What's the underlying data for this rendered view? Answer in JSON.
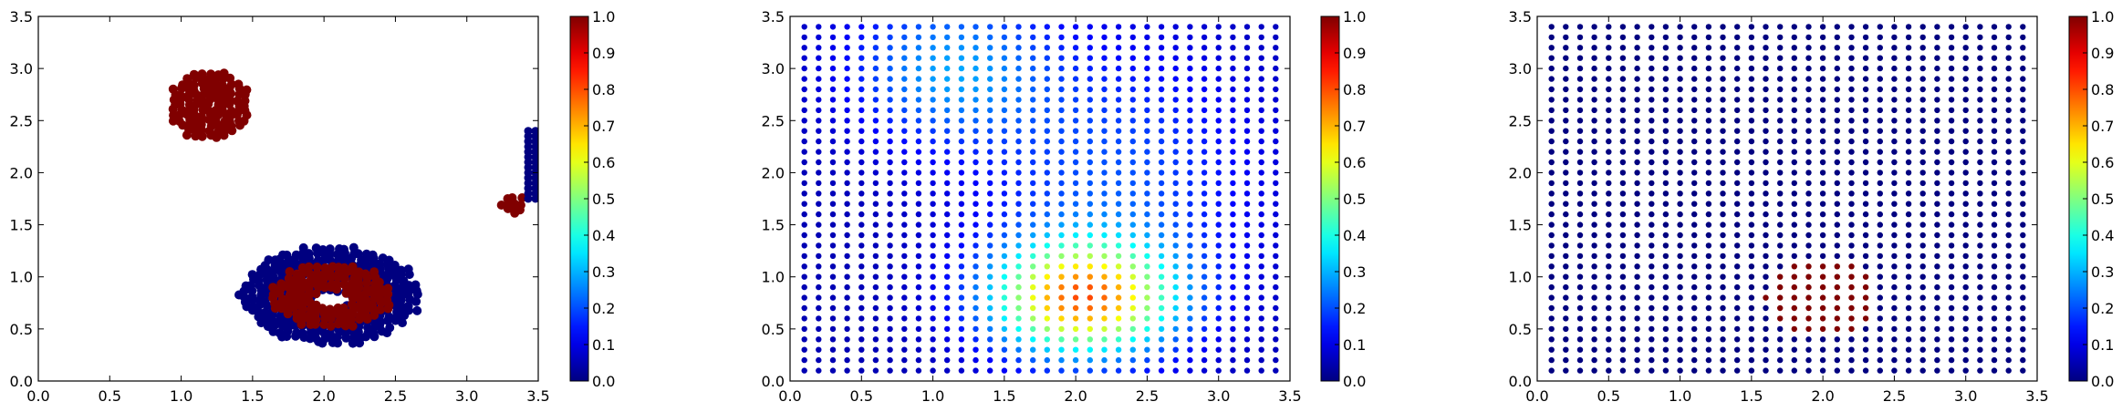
{
  "colormap": "jet",
  "chart_data": [
    {
      "type": "scatter",
      "title": "",
      "xlabel": "",
      "ylabel": "",
      "xlim": [
        0,
        3.5
      ],
      "ylim": [
        0,
        3.5
      ],
      "xticks": [
        "0.0",
        "0.5",
        "1.0",
        "1.5",
        "2.0",
        "2.5",
        "3.0",
        "3.5"
      ],
      "yticks": [
        "0.0",
        "0.5",
        "1.0",
        "1.5",
        "2.0",
        "2.5",
        "3.0",
        "3.5"
      ],
      "grid": false,
      "colorbar": {
        "range": [
          0,
          1
        ],
        "ticks": [
          "0.0",
          "0.1",
          "0.2",
          "0.3",
          "0.4",
          "0.5",
          "0.6",
          "0.7",
          "0.8",
          "0.9",
          "1.0"
        ]
      },
      "field": {
        "kind": "classified_regions",
        "point_spacing": 0.05,
        "regions": [
          {
            "label": "upper-left blob",
            "value": 1.0,
            "shape": "blob",
            "center": [
              1.2,
              2.65
            ],
            "radii": [
              0.3,
              0.35
            ]
          },
          {
            "label": "right patch",
            "value": 1.0,
            "shape": "blob",
            "center": [
              3.33,
              1.7
            ],
            "radii": [
              0.1,
              0.1
            ]
          },
          {
            "label": "right strip",
            "value": 0.0,
            "shape": "strip",
            "x": [
              3.43,
              3.48
            ],
            "y": [
              1.75,
              2.4
            ]
          },
          {
            "label": "ring outer",
            "value": 0.0,
            "shape": "ring",
            "center": [
              2.05,
              0.82
            ],
            "radii": [
              0.65,
              0.5
            ]
          },
          {
            "label": "ring inner",
            "value": 1.0,
            "shape": "ring",
            "center": [
              2.05,
              0.82
            ],
            "radii": [
              0.45,
              0.33
            ]
          },
          {
            "label": "hole",
            "value": null,
            "shape": "hole",
            "center": [
              2.05,
              0.78
            ],
            "radii": [
              0.12,
              0.08
            ]
          }
        ]
      }
    },
    {
      "type": "scatter",
      "title": "",
      "xlabel": "",
      "ylabel": "",
      "xlim": [
        0,
        3.5
      ],
      "ylim": [
        0,
        3.5
      ],
      "xticks": [
        "0.0",
        "0.5",
        "1.0",
        "1.5",
        "2.0",
        "2.5",
        "3.0",
        "3.5"
      ],
      "yticks": [
        "0.0",
        "0.5",
        "1.0",
        "1.5",
        "2.0",
        "2.5",
        "3.0",
        "3.5"
      ],
      "grid": false,
      "colorbar": {
        "range": [
          0,
          1
        ],
        "ticks": [
          "0.0",
          "0.1",
          "0.2",
          "0.3",
          "0.4",
          "0.5",
          "0.6",
          "0.7",
          "0.8",
          "0.9",
          "1.0"
        ]
      },
      "field": {
        "kind": "gaussian_grid",
        "x_range": [
          0.1,
          3.4
        ],
        "y_range": [
          0.1,
          3.4
        ],
        "step": 0.1,
        "components": [
          {
            "center": [
              2.05,
              0.8
            ],
            "sigma": [
              0.45,
              0.38
            ],
            "amplitude": 0.7
          },
          {
            "center": [
              1.1,
              3.0
            ],
            "sigma": [
              0.5,
              0.5
            ],
            "amplitude": 0.22
          },
          {
            "center": [
              2.3,
              2.0
            ],
            "sigma": [
              0.7,
              0.9
            ],
            "amplitude": 0.15
          }
        ],
        "baseline": 0.05
      }
    },
    {
      "type": "scatter",
      "title": "",
      "xlabel": "",
      "ylabel": "",
      "xlim": [
        0,
        3.5
      ],
      "ylim": [
        0,
        3.5
      ],
      "xticks": [
        "0.0",
        "0.5",
        "1.0",
        "1.5",
        "2.0",
        "2.5",
        "3.0",
        "3.5"
      ],
      "yticks": [
        "0.0",
        "0.5",
        "1.0",
        "1.5",
        "2.0",
        "2.5",
        "3.0",
        "3.5"
      ],
      "grid": false,
      "colorbar": {
        "range": [
          0,
          1
        ],
        "ticks": [
          "0.0",
          "0.1",
          "0.2",
          "0.3",
          "0.4",
          "0.5",
          "0.6",
          "0.7",
          "0.8",
          "0.9",
          "1.0"
        ]
      },
      "field": {
        "kind": "binary_grid",
        "x_range": [
          0.1,
          3.4
        ],
        "y_range": [
          0.1,
          3.4
        ],
        "step": 0.1,
        "background_value": 0.0,
        "highlight": {
          "value": 1.0,
          "center": [
            2.0,
            0.8
          ],
          "radii": [
            0.4,
            0.35
          ]
        }
      }
    }
  ]
}
